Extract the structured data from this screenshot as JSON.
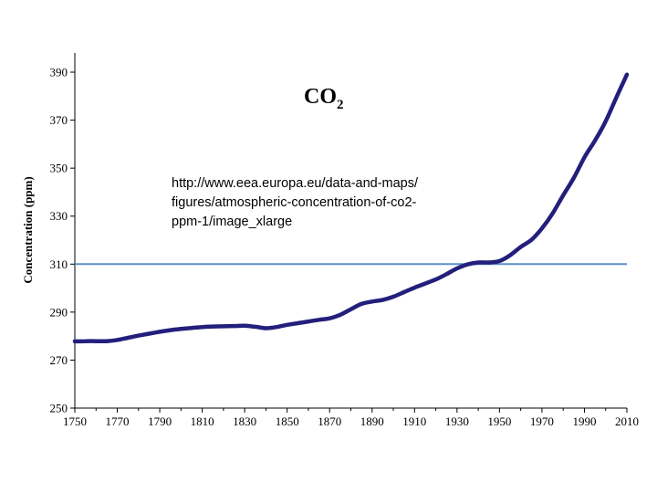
{
  "chart_data": {
    "type": "line",
    "title_main": "CO",
    "title_sub": "2",
    "ylabel": "Concentration (ppm)",
    "xlabel": "",
    "xlim": [
      1750,
      2010
    ],
    "ylim": [
      250,
      398
    ],
    "x_ticks": [
      1750,
      1770,
      1790,
      1810,
      1830,
      1850,
      1870,
      1890,
      1910,
      1930,
      1950,
      1970,
      1990,
      2010
    ],
    "y_ticks": [
      250,
      270,
      290,
      310,
      330,
      350,
      370,
      390
    ],
    "reference_line": {
      "y": 310,
      "color": "#5B8FC9"
    },
    "series": [
      {
        "color": "#231F7C",
        "x": [
          1750,
          1755,
          1760,
          1765,
          1770,
          1775,
          1780,
          1785,
          1790,
          1795,
          1800,
          1805,
          1810,
          1815,
          1820,
          1825,
          1830,
          1835,
          1840,
          1845,
          1850,
          1855,
          1860,
          1865,
          1870,
          1875,
          1880,
          1885,
          1890,
          1895,
          1900,
          1905,
          1910,
          1915,
          1920,
          1925,
          1930,
          1935,
          1940,
          1945,
          1950,
          1955,
          1960,
          1965,
          1970,
          1975,
          1980,
          1985,
          1990,
          1995,
          2000,
          2005,
          2010
        ],
        "y": [
          277.8,
          277.9,
          277.9,
          277.9,
          278.4,
          279.3,
          280.2,
          281.0,
          281.8,
          282.5,
          283.0,
          283.4,
          283.8,
          284.0,
          284.1,
          284.2,
          284.3,
          283.9,
          283.3,
          283.8,
          284.7,
          285.4,
          286.1,
          286.8,
          287.4,
          288.9,
          291.2,
          293.4,
          294.4,
          295.1,
          296.4,
          298.3,
          300.2,
          301.9,
          303.6,
          305.8,
          308.2,
          309.9,
          310.7,
          310.7,
          311.3,
          313.7,
          317.2,
          320.1,
          324.9,
          331.1,
          338.7,
          345.9,
          354.5,
          361.5,
          369.5,
          379.4,
          389.0
        ]
      }
    ],
    "annotation_lines": [
      "http://www.eea.europa.eu/data-and-maps/",
      "figures/atmospheric-concentration-of-co2-",
      "ppm-1/image_xlarge"
    ]
  }
}
